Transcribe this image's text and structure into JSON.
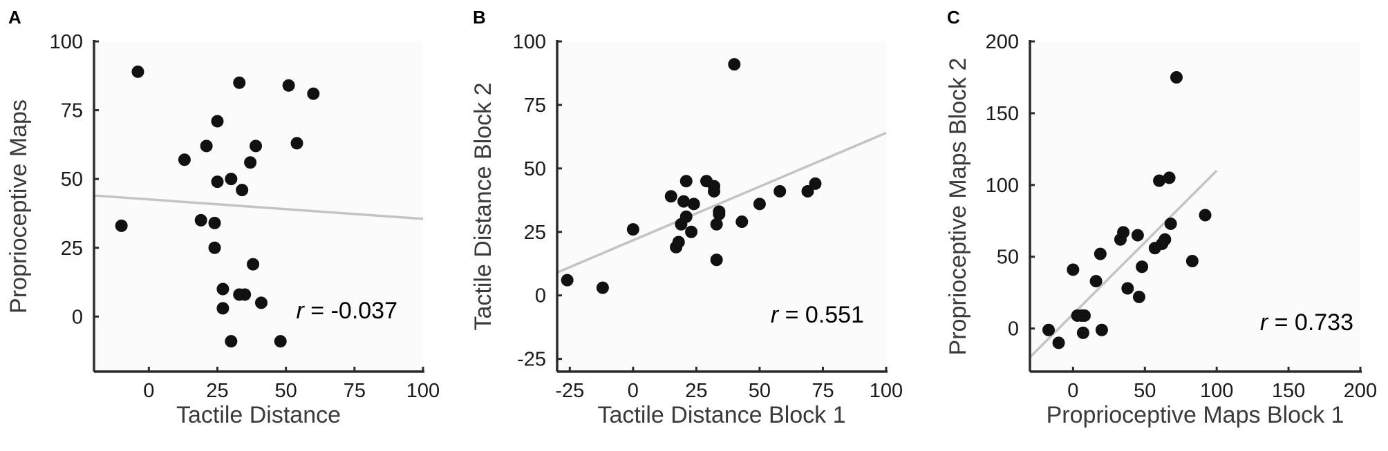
{
  "chart_data": [
    {
      "panel_label": "A",
      "type": "scatter",
      "xlabel": "Tactile Distance",
      "ylabel": "Proprioceptive Maps",
      "xlim": [
        -20,
        100
      ],
      "ylim": [
        -20,
        100
      ],
      "xticks": [
        0,
        25,
        50,
        75,
        100
      ],
      "yticks": [
        0,
        25,
        50,
        75,
        100
      ],
      "correlation_label": {
        "prefix": "r",
        "value": " = -0.037"
      },
      "fit_line": {
        "x": [
          -20,
          100
        ],
        "y": [
          44,
          35.5
        ]
      },
      "points": [
        {
          "x": -4,
          "y": 89
        },
        {
          "x": -10,
          "y": 33
        },
        {
          "x": 13,
          "y": 57
        },
        {
          "x": 19,
          "y": 35
        },
        {
          "x": 21,
          "y": 62
        },
        {
          "x": 24,
          "y": 34
        },
        {
          "x": 24,
          "y": 25
        },
        {
          "x": 25,
          "y": 71
        },
        {
          "x": 25,
          "y": 49
        },
        {
          "x": 27,
          "y": 10
        },
        {
          "x": 27,
          "y": 3
        },
        {
          "x": 30,
          "y": 50
        },
        {
          "x": 30,
          "y": -9
        },
        {
          "x": 33,
          "y": 85
        },
        {
          "x": 33,
          "y": 8
        },
        {
          "x": 34,
          "y": 46
        },
        {
          "x": 35,
          "y": 8
        },
        {
          "x": 37,
          "y": 56
        },
        {
          "x": 38,
          "y": 19
        },
        {
          "x": 39,
          "y": 62
        },
        {
          "x": 41,
          "y": 5
        },
        {
          "x": 48,
          "y": -9
        },
        {
          "x": 51,
          "y": 84
        },
        {
          "x": 54,
          "y": 63
        },
        {
          "x": 60,
          "y": 81
        }
      ]
    },
    {
      "panel_label": "B",
      "type": "scatter",
      "xlabel": "Tactile Distance Block 1",
      "ylabel": "Tactile Distance Block 2",
      "xlim": [
        -30,
        100
      ],
      "ylim": [
        -30,
        100
      ],
      "xticks": [
        -25,
        0,
        25,
        50,
        75,
        100
      ],
      "yticks": [
        -25,
        0,
        25,
        50,
        75,
        100
      ],
      "correlation_label": {
        "prefix": "r",
        "value": " = 0.551"
      },
      "fit_line": {
        "x": [
          -30,
          100
        ],
        "y": [
          9,
          64
        ]
      },
      "points": [
        {
          "x": -26,
          "y": 6
        },
        {
          "x": -12,
          "y": 3
        },
        {
          "x": 0,
          "y": 26
        },
        {
          "x": 15,
          "y": 39
        },
        {
          "x": 17,
          "y": 19
        },
        {
          "x": 18,
          "y": 21
        },
        {
          "x": 19,
          "y": 28
        },
        {
          "x": 20,
          "y": 37
        },
        {
          "x": 21,
          "y": 45
        },
        {
          "x": 21,
          "y": 31
        },
        {
          "x": 23,
          "y": 25
        },
        {
          "x": 24,
          "y": 36
        },
        {
          "x": 29,
          "y": 45
        },
        {
          "x": 32,
          "y": 43
        },
        {
          "x": 32,
          "y": 41
        },
        {
          "x": 33,
          "y": 28
        },
        {
          "x": 33,
          "y": 14
        },
        {
          "x": 34,
          "y": 32
        },
        {
          "x": 34,
          "y": 33
        },
        {
          "x": 40,
          "y": 91
        },
        {
          "x": 43,
          "y": 29
        },
        {
          "x": 50,
          "y": 36
        },
        {
          "x": 58,
          "y": 41
        },
        {
          "x": 69,
          "y": 41
        },
        {
          "x": 72,
          "y": 44
        }
      ]
    },
    {
      "panel_label": "C",
      "type": "scatter",
      "xlabel": "Proprioceptive Maps Block 1",
      "ylabel": "Proprioceptive Maps Block 2",
      "xlim": [
        -30,
        200
      ],
      "ylim": [
        -30,
        200
      ],
      "xticks": [
        0,
        50,
        100,
        150,
        200
      ],
      "yticks": [
        0,
        50,
        100,
        150,
        200
      ],
      "correlation_label": {
        "prefix": "r",
        "value": " = 0.733"
      },
      "fit_line": {
        "x": [
          -30,
          100
        ],
        "y": [
          -20,
          110
        ]
      },
      "points": [
        {
          "x": -17,
          "y": -1
        },
        {
          "x": -10,
          "y": -10
        },
        {
          "x": 0,
          "y": 41
        },
        {
          "x": 3,
          "y": 9
        },
        {
          "x": 6,
          "y": 9
        },
        {
          "x": 7,
          "y": -3
        },
        {
          "x": 8,
          "y": 9
        },
        {
          "x": 16,
          "y": 33
        },
        {
          "x": 19,
          "y": 52
        },
        {
          "x": 20,
          "y": -1
        },
        {
          "x": 33,
          "y": 62
        },
        {
          "x": 35,
          "y": 67
        },
        {
          "x": 38,
          "y": 28
        },
        {
          "x": 45,
          "y": 65
        },
        {
          "x": 46,
          "y": 22
        },
        {
          "x": 48,
          "y": 43
        },
        {
          "x": 57,
          "y": 56
        },
        {
          "x": 60,
          "y": 103
        },
        {
          "x": 62,
          "y": 59
        },
        {
          "x": 64,
          "y": 62
        },
        {
          "x": 67,
          "y": 105
        },
        {
          "x": 68,
          "y": 73
        },
        {
          "x": 72,
          "y": 175
        },
        {
          "x": 83,
          "y": 47
        },
        {
          "x": 92,
          "y": 79
        }
      ]
    }
  ]
}
